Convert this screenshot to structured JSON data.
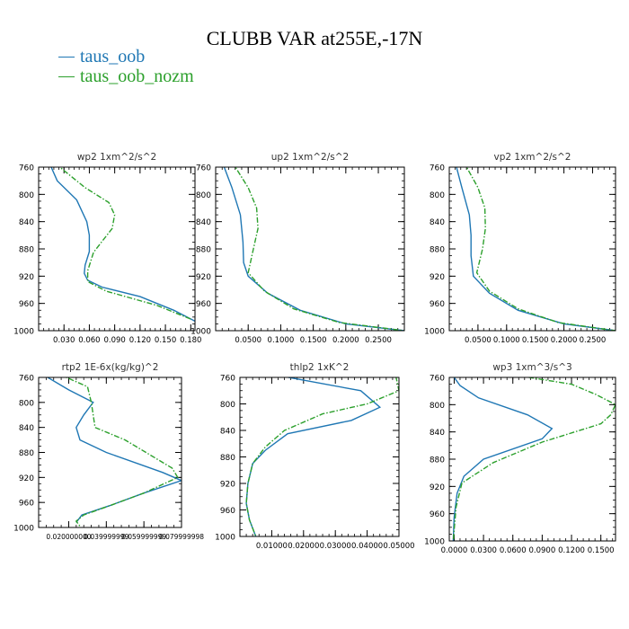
{
  "title": "CLUBB VAR at255E,-17N",
  "legend": [
    {
      "label": "taus_oob",
      "color": "#1f77b4"
    },
    {
      "label": "taus_oob_nozm",
      "color": "#2ca02c"
    }
  ],
  "chart_data": [
    {
      "type": "line",
      "title": "wp2  1xm^2/s^2",
      "xlim": [
        0,
        0.185
      ],
      "ylim": [
        760,
        1000
      ],
      "y_reversed": true,
      "xticks": [
        0.03,
        0.06,
        0.09,
        0.12,
        0.15,
        0.18
      ],
      "xtick_labels": [
        "0.030",
        "0.060",
        "0.090",
        "0.120",
        "0.150",
        "0.180"
      ],
      "yticks": [
        760,
        800,
        840,
        880,
        920,
        960,
        1000
      ],
      "series": [
        {
          "name": "taus_oob",
          "color": "#1f77b4",
          "x": [
            0.012,
            0.022,
            0.045,
            0.057,
            0.06,
            0.06,
            0.055,
            0.054,
            0.058,
            0.075,
            0.12,
            0.16,
            0.185
          ],
          "y": [
            752,
            780,
            808,
            840,
            860,
            884,
            904,
            916,
            926,
            936,
            950,
            970,
            986
          ]
        },
        {
          "name": "taus_oob_nozm",
          "color": "#2ca02c",
          "x": [
            0.02,
            0.055,
            0.083,
            0.09,
            0.087,
            0.065,
            0.058,
            0.058,
            0.08,
            0.14,
            0.18
          ],
          "y": [
            755,
            790,
            812,
            830,
            850,
            885,
            912,
            928,
            942,
            963,
            983
          ]
        }
      ]
    },
    {
      "type": "line",
      "title": "up2  1xm^2/s^2",
      "xlim": [
        0,
        0.29
      ],
      "ylim": [
        760,
        1000
      ],
      "y_reversed": true,
      "xticks": [
        0.05,
        0.1,
        0.15,
        0.2,
        0.25
      ],
      "xtick_labels": [
        "0.0500",
        "0.1000",
        "0.1500",
        "0.2000",
        "0.2500"
      ],
      "yticks": [
        760,
        800,
        840,
        880,
        920,
        960,
        1000
      ],
      "series": [
        {
          "name": "taus_oob",
          "color": "#1f77b4",
          "x": [
            0.01,
            0.025,
            0.038,
            0.042,
            0.043,
            0.05,
            0.08,
            0.13,
            0.2,
            0.29
          ],
          "y": [
            752,
            790,
            830,
            870,
            900,
            920,
            945,
            970,
            990,
            1000
          ]
        },
        {
          "name": "taus_oob_nozm",
          "color": "#2ca02c",
          "x": [
            0.025,
            0.05,
            0.063,
            0.065,
            0.058,
            0.05,
            0.075,
            0.12,
            0.19,
            0.29
          ],
          "y": [
            752,
            790,
            820,
            850,
            880,
            915,
            942,
            968,
            988,
            1000
          ]
        }
      ]
    },
    {
      "type": "line",
      "title": "vp2  1xm^2/s^2",
      "xlim": [
        0,
        0.29
      ],
      "ylim": [
        760,
        1000
      ],
      "y_reversed": true,
      "xticks": [
        0.05,
        0.1,
        0.15,
        0.2,
        0.25
      ],
      "xtick_labels": [
        "0.0500",
        "0.1000",
        "0.1500",
        "0.2000",
        "0.2500"
      ],
      "yticks": [
        760,
        800,
        840,
        880,
        920,
        960,
        1000
      ],
      "series": [
        {
          "name": "taus_oob",
          "color": "#1f77b4",
          "x": [
            0.01,
            0.022,
            0.035,
            0.038,
            0.038,
            0.042,
            0.07,
            0.12,
            0.2,
            0.29
          ],
          "y": [
            752,
            790,
            830,
            860,
            890,
            920,
            945,
            970,
            990,
            1000
          ]
        },
        {
          "name": "taus_oob_nozm",
          "color": "#2ca02c",
          "x": [
            0.025,
            0.05,
            0.062,
            0.063,
            0.058,
            0.048,
            0.07,
            0.12,
            0.19,
            0.29
          ],
          "y": [
            752,
            790,
            820,
            850,
            880,
            915,
            942,
            968,
            988,
            1000
          ]
        }
      ]
    },
    {
      "type": "line",
      "title": "rtp2  1E-6x(kg/kg)^2",
      "xlim": [
        0.004,
        0.08
      ],
      "ylim": [
        760,
        1000
      ],
      "y_reversed": true,
      "xticks": [
        0.02,
        0.04,
        0.06,
        0.08
      ],
      "xtick_labels": [
        "0.020000000",
        "0.039999999",
        "0.059999999",
        "0.079999998"
      ],
      "yticks": [
        760,
        800,
        840,
        880,
        920,
        960,
        1000
      ],
      "series": [
        {
          "name": "taus_oob",
          "color": "#1f77b4",
          "x": [
            0.006,
            0.02,
            0.033,
            0.028,
            0.024,
            0.026,
            0.04,
            0.07,
            0.08,
            0.06,
            0.042,
            0.027,
            0.024
          ],
          "y": [
            755,
            780,
            800,
            820,
            840,
            860,
            880,
            912,
            925,
            945,
            965,
            980,
            992
          ]
        },
        {
          "name": "taus_oob_nozm",
          "color": "#2ca02c",
          "x": [
            0.015,
            0.03,
            0.032,
            0.034,
            0.05,
            0.075,
            0.078,
            0.06,
            0.042,
            0.028,
            0.024,
            0.026
          ],
          "y": [
            755,
            775,
            800,
            840,
            860,
            905,
            920,
            945,
            965,
            980,
            990,
            998
          ]
        }
      ]
    },
    {
      "type": "line",
      "title": "thlp2  1xK^2",
      "xlim": [
        0,
        0.05
      ],
      "ylim": [
        760,
        1000
      ],
      "y_reversed": true,
      "xticks": [
        0.01,
        0.02,
        0.03,
        0.04,
        0.05
      ],
      "xtick_labels": [
        "0.01000",
        "0.02000",
        "0.03000",
        "0.04000",
        "0.05000"
      ],
      "yticks": [
        760,
        800,
        840,
        880,
        920,
        960,
        1000
      ],
      "series": [
        {
          "name": "taus_oob",
          "color": "#1f77b4",
          "x": [
            0.013,
            0.038,
            0.044,
            0.035,
            0.015,
            0.008,
            0.004,
            0.0025,
            0.002,
            0.003,
            0.005
          ],
          "y": [
            758,
            780,
            805,
            825,
            845,
            870,
            890,
            920,
            950,
            975,
            1000
          ]
        },
        {
          "name": "taus_oob_nozm",
          "color": "#2ca02c",
          "x": [
            0.049,
            0.05,
            0.04,
            0.026,
            0.014,
            0.008,
            0.004,
            0.0025,
            0.002,
            0.003,
            0.005
          ],
          "y": [
            758,
            780,
            800,
            815,
            840,
            865,
            890,
            920,
            950,
            975,
            1000
          ]
        }
      ]
    },
    {
      "type": "line",
      "title": "wp3  1xm^3/s^3",
      "xlim": [
        -0.005,
        0.165
      ],
      "ylim": [
        760,
        1000
      ],
      "y_reversed": true,
      "xticks": [
        0,
        0.03,
        0.06,
        0.09,
        0.12,
        0.15
      ],
      "xtick_labels": [
        "0.0000",
        "0.0300",
        "0.0600",
        "0.0900",
        "0.1200",
        "0.1500"
      ],
      "yticks": [
        760,
        800,
        840,
        880,
        920,
        960,
        1000
      ],
      "series": [
        {
          "name": "taus_oob",
          "color": "#1f77b4",
          "x": [
            0.0,
            0.006,
            0.025,
            0.075,
            0.1,
            0.09,
            0.03,
            0.01,
            0.003,
            0.0,
            -0.001
          ],
          "y": [
            760,
            772,
            790,
            815,
            835,
            850,
            880,
            905,
            930,
            965,
            1000
          ]
        },
        {
          "name": "taus_oob_nozm",
          "color": "#2ca02c",
          "x": [
            0.055,
            0.12,
            0.145,
            0.165,
            0.16,
            0.15,
            0.09,
            0.04,
            0.008,
            0.002,
            -0.001
          ],
          "y": [
            755,
            770,
            785,
            800,
            815,
            828,
            855,
            885,
            915,
            950,
            1000
          ]
        }
      ]
    }
  ]
}
